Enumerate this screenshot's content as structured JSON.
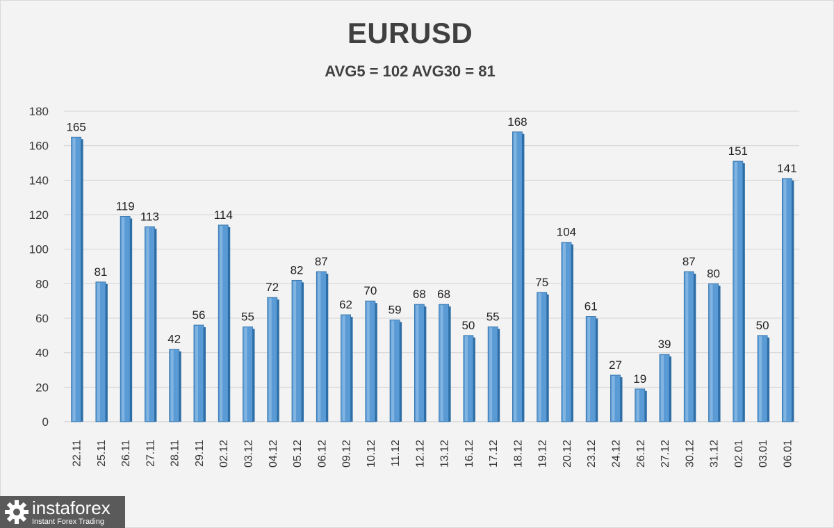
{
  "chart_data": {
    "type": "bar",
    "title": "EURUSD",
    "subtitle": "AVG5 = 102 AVG30 = 81",
    "categories": [
      "22.11",
      "25.11",
      "26.11",
      "27.11",
      "28.11",
      "29.11",
      "02.12",
      "03.12",
      "04.12",
      "05.12",
      "06.12",
      "09.12",
      "10.12",
      "11.12",
      "12.12",
      "13.12",
      "16.12",
      "17.12",
      "18.12",
      "19.12",
      "20.12",
      "23.12",
      "24.12",
      "26.12",
      "27.12",
      "30.12",
      "31.12",
      "02.01",
      "03.01",
      "06.01"
    ],
    "values": [
      165,
      81,
      119,
      113,
      42,
      56,
      114,
      55,
      72,
      82,
      87,
      62,
      70,
      59,
      68,
      68,
      50,
      55,
      168,
      75,
      104,
      61,
      27,
      19,
      39,
      87,
      80,
      151,
      50,
      141
    ],
    "ylim": [
      0,
      180
    ],
    "yticks": [
      0,
      20,
      40,
      60,
      80,
      100,
      120,
      140,
      160,
      180
    ],
    "grid": true,
    "bar_color": "#5b9bd5",
    "bar_dark": "#2e6ea6"
  },
  "logo": {
    "name": "instaforex",
    "tagline": "Instant Forex Trading"
  }
}
